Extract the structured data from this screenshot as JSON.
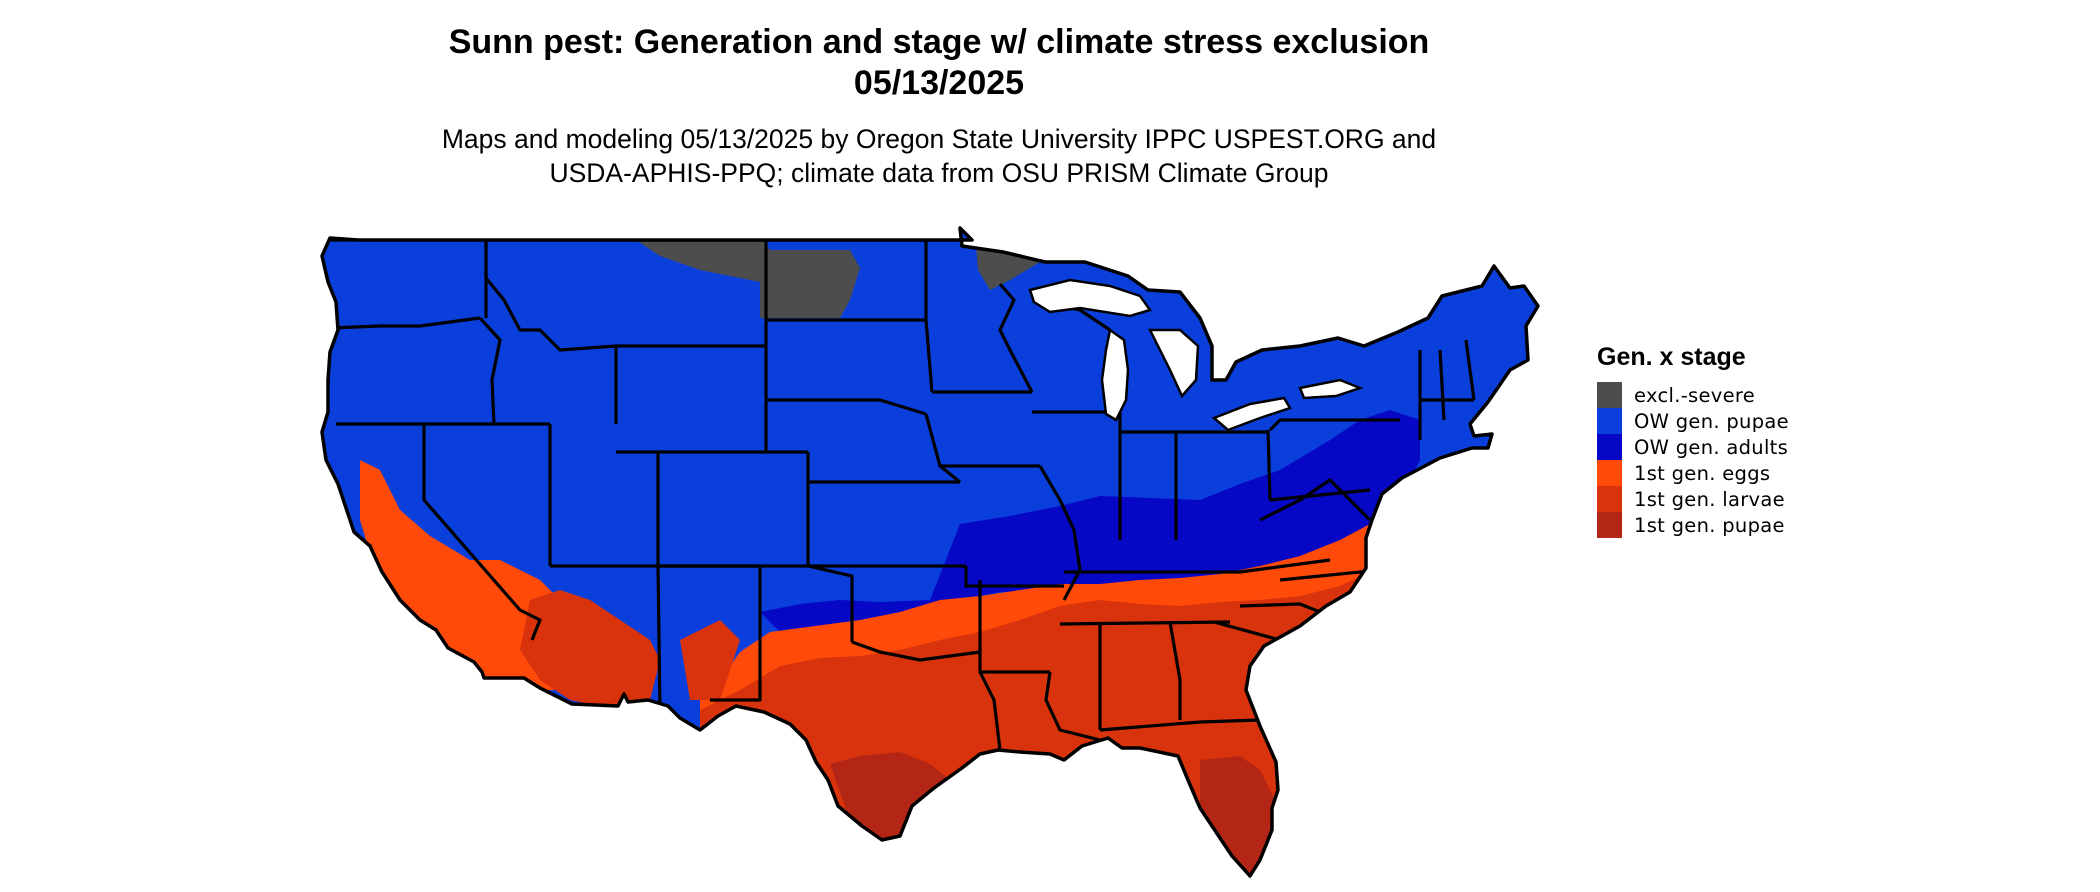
{
  "title_line1": "Sunn pest: Generation and stage w/ climate stress exclusion",
  "title_line2": "05/13/2025",
  "subtitle_line1": "Maps and modeling 05/13/2025 by Oregon State University IPPC USPEST.ORG and",
  "subtitle_line2": "USDA-APHIS-PPQ; climate data from OSU PRISM Climate Group",
  "legend": {
    "title": "Gen. x stage",
    "items": [
      {
        "label": "excl.-severe",
        "color": "#4d4d4d"
      },
      {
        "label": "OW gen. pupae",
        "color": "#0a3fdc"
      },
      {
        "label": "OW gen. adults",
        "color": "#0707c6"
      },
      {
        "label": "1st gen. eggs",
        "color": "#ff4a0a"
      },
      {
        "label": "1st gen. larvae",
        "color": "#d8330c"
      },
      {
        "label": "1st gen. pupae",
        "color": "#b32514"
      }
    ]
  }
}
